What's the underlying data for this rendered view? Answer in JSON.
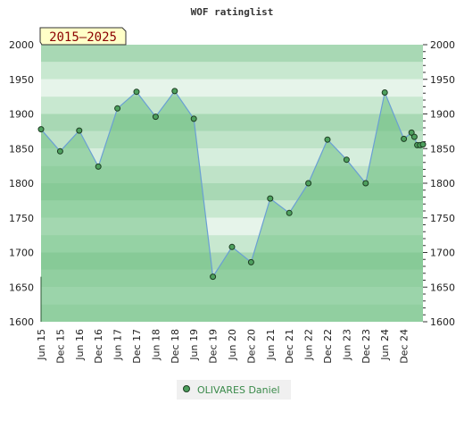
{
  "chart_data": {
    "type": "area",
    "title": "WOF ratinglist",
    "badge": "2015–2025",
    "ylim": [
      1600,
      2000
    ],
    "y_ticks": [
      "1600",
      "1650",
      "1700",
      "1750",
      "1800",
      "1850",
      "1900",
      "1950",
      "2000"
    ],
    "y_axis_sides": "both",
    "x_labels": [
      "Jun 15",
      "Dec 15",
      "Jun 16",
      "Dec 16",
      "Jun 17",
      "Dec 17",
      "Jun 18",
      "Dec 18",
      "Jun 19",
      "Dec 19",
      "Jun 20",
      "Dec 20",
      "Jun 21",
      "Dec 21",
      "Jun 22",
      "Dec 22",
      "Jun 23",
      "Dec 23",
      "Jun 24",
      "Dec 24"
    ],
    "x": [
      0,
      1,
      2,
      3,
      4,
      5,
      6,
      7,
      8,
      9,
      10,
      11,
      12,
      13,
      14,
      15,
      16,
      17,
      18,
      19,
      19.4,
      19.55,
      19.7,
      19.85,
      20.0
    ],
    "values": [
      1878,
      1846,
      1876,
      1824,
      1908,
      1932,
      1896,
      1933,
      1893,
      1665,
      1708,
      1686,
      1778,
      1757,
      1800,
      1863,
      1834,
      1800,
      1931,
      1864,
      1873,
      1867,
      1855,
      1855,
      1856
    ],
    "series": [
      {
        "name": "OLIVARES Daniel"
      }
    ],
    "legend_position": "bottom-center",
    "grid": true,
    "colors": {
      "line": "#6a9fd4",
      "fill": "#6cbf7f",
      "marker": "#4ea05e",
      "band_light": "#c8e8d0",
      "band_dark": "#a8d8b4",
      "legend_text": "#3a8a4a",
      "badge_bg": "#ffffc8",
      "badge_text": "#8b0000"
    }
  }
}
